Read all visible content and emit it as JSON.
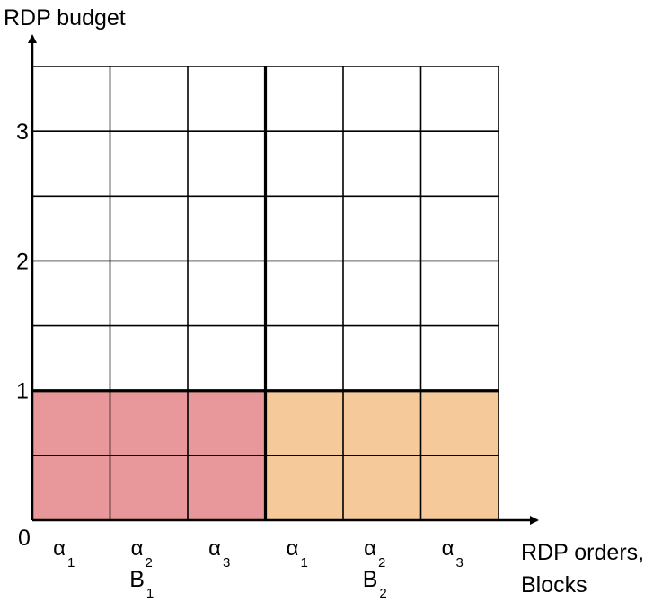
{
  "axes": {
    "y_label": "RDP budget",
    "x_label_line1": "RDP orders,",
    "x_label_line2": "Blocks",
    "origin_label": "0",
    "y_ticks": [
      "1",
      "2",
      "3"
    ]
  },
  "grid": {
    "rows": 7,
    "cols": 6,
    "row_step": 0.5
  },
  "blocks": [
    {
      "name": "B",
      "subscript": "1",
      "color": "#e8989a",
      "filled_rows": 2,
      "orders": [
        {
          "symbol": "α",
          "subscript": "1"
        },
        {
          "symbol": "α",
          "subscript": "2"
        },
        {
          "symbol": "α",
          "subscript": "3"
        }
      ]
    },
    {
      "name": "B",
      "subscript": "2",
      "color": "#f6c99b",
      "filled_rows": 2,
      "orders": [
        {
          "symbol": "α",
          "subscript": "1"
        },
        {
          "symbol": "α",
          "subscript": "2"
        },
        {
          "symbol": "α",
          "subscript": "3"
        }
      ]
    }
  ],
  "colors": {
    "line": "#000000",
    "background": "#ffffff"
  }
}
